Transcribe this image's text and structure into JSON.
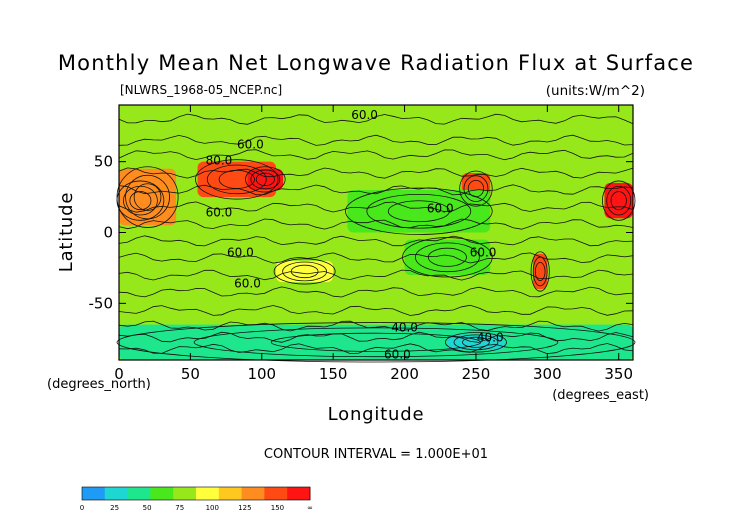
{
  "chart_data": {
    "type": "heatmap",
    "title": "Monthly Mean Net Longwave Radiation Flux at Surface",
    "file_label": "[NLWRS_1968-05_NCEP.nc]",
    "units_label": "(units:W/m^2)",
    "xlabel": "Longitude",
    "ylabel": "Latitude",
    "x_units": "(degrees_east)",
    "y_units": "(degrees_north)",
    "xlim": [
      0,
      360
    ],
    "ylim": [
      -90,
      90
    ],
    "x_ticks": [
      0,
      50,
      100,
      150,
      200,
      250,
      300,
      350
    ],
    "y_ticks": [
      50,
      0,
      -50
    ],
    "contour_interval": "CONTOUR INTERVAL = 1.000E+01",
    "contour_labels": [
      {
        "text": "60.0",
        "lon": 172,
        "lat": 83
      },
      {
        "text": "60.0",
        "lon": 92,
        "lat": 62
      },
      {
        "text": "80.0",
        "lon": 70,
        "lat": 51
      },
      {
        "text": "60.0",
        "lon": 225,
        "lat": 17
      },
      {
        "text": "60.0",
        "lon": 70,
        "lat": 14
      },
      {
        "text": "60.0",
        "lon": 85,
        "lat": -14
      },
      {
        "text": "60.0",
        "lon": 255,
        "lat": -14
      },
      {
        "text": "60.0",
        "lon": 90,
        "lat": -36
      },
      {
        "text": "40.0",
        "lon": 200,
        "lat": -67
      },
      {
        "text": "40.0",
        "lon": 260,
        "lat": -74
      },
      {
        "text": "60.0",
        "lon": 195,
        "lat": -86
      }
    ],
    "colorbar": {
      "tick_labels": [
        "0",
        "25",
        "50",
        "75",
        "100",
        "125",
        "150",
        "∞"
      ],
      "colors": [
        "#1e9cf5",
        "#1ed7d2",
        "#1ee68c",
        "#48e81c",
        "#96e81a",
        "#ffff3c",
        "#ffc81e",
        "#ff8c1e",
        "#ff4a14",
        "#ff1414"
      ]
    },
    "regions": [
      {
        "lon": [
          0,
          360
        ],
        "lat": [
          -90,
          90
        ],
        "level": 4
      },
      {
        "lon": [
          0,
          30
        ],
        "lat": [
          10,
          35
        ],
        "level": 9
      },
      {
        "lon": [
          0,
          40
        ],
        "lat": [
          5,
          45
        ],
        "level": 7
      },
      {
        "lon": [
          55,
          110
        ],
        "lat": [
          25,
          50
        ],
        "level": 8
      },
      {
        "lon": [
          90,
          115
        ],
        "lat": [
          30,
          45
        ],
        "level": 9
      },
      {
        "lon": [
          240,
          260
        ],
        "lat": [
          20,
          42
        ],
        "level": 8
      },
      {
        "lon": [
          340,
          360
        ],
        "lat": [
          10,
          35
        ],
        "level": 9
      },
      {
        "lon": [
          290,
          300
        ],
        "lat": [
          -40,
          -15
        ],
        "level": 8
      },
      {
        "lon": [
          110,
          150
        ],
        "lat": [
          -35,
          -20
        ],
        "level": 5
      },
      {
        "lon": [
          160,
          260
        ],
        "lat": [
          0,
          30
        ],
        "level": 3
      },
      {
        "lon": [
          200,
          260
        ],
        "lat": [
          -30,
          -5
        ],
        "level": 3
      },
      {
        "lon": [
          0,
          360
        ],
        "lat": [
          -90,
          -65
        ],
        "level": 2
      },
      {
        "lon": [
          230,
          270
        ],
        "lat": [
          -83,
          -72
        ],
        "level": 1
      }
    ]
  }
}
